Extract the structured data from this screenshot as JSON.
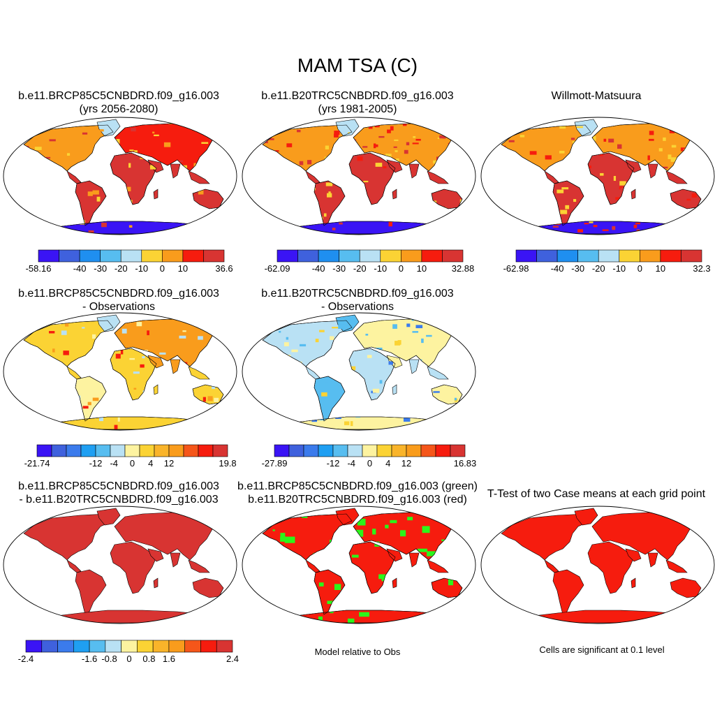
{
  "main_title": "MAM TSA (C)",
  "panels": [
    {
      "id": "p1",
      "line1": "b.e11.BRCP85C5CNBDRD.f09_g16.003",
      "line2": "(yrs 2056-2080)",
      "style": "abs_future"
    },
    {
      "id": "p2",
      "line1": "b.e11.B20TRC5CNBDRD.f09_g16.003",
      "line2": "(yrs 1981-2005)",
      "style": "abs_hist"
    },
    {
      "id": "p3",
      "line1": "",
      "line2": "Willmott-Matsuura",
      "style": "abs_obs"
    },
    {
      "id": "p4",
      "line1": "b.e11.BRCP85C5CNBDRD.f09_g16.003",
      "line2": "- Observations",
      "style": "diff_future"
    },
    {
      "id": "p5",
      "line1": "b.e11.B20TRC5CNBDRD.f09_g16.003",
      "line2": "- Observations",
      "style": "diff_hist"
    },
    {
      "id": "p7",
      "line1": "b.e11.BRCP85C5CNBDRD.f09_g16.003",
      "line2": "- b.e11.B20TRC5CNBDRD.f09_g16.003",
      "style": "diff_cases"
    },
    {
      "id": "p8",
      "line1": "b.e11.BRCP85C5CNBDRD.f09_g16.003 (green)",
      "line2": "b.e11.B20TRC5CNBDRD.f09_g16.003 (red)",
      "style": "closeness"
    },
    {
      "id": "p9",
      "line1": "T-Test of two Case means at each grid point",
      "line2": "",
      "style": "ttest"
    }
  ],
  "colorbars": [
    {
      "id": "cb1",
      "labels": [
        "-58.16",
        "-40",
        "-30",
        "-20",
        "-10",
        "0",
        "10",
        "36.6"
      ],
      "colors": [
        "#3a14f5",
        "#3f61dd",
        "#1f8ff0",
        "#57bdf0",
        "#b9e1f4",
        "#fbd334",
        "#f99c1c",
        "#f61c0e",
        "#d83432"
      ]
    },
    {
      "id": "cb2",
      "labels": [
        "-62.09",
        "-40",
        "-30",
        "-20",
        "-10",
        "0",
        "10",
        "32.88"
      ],
      "colors": [
        "#3a14f5",
        "#3f61dd",
        "#1f8ff0",
        "#57bdf0",
        "#b9e1f4",
        "#fbd334",
        "#f99c1c",
        "#f61c0e",
        "#d83432"
      ]
    },
    {
      "id": "cb3",
      "labels": [
        "-62.98",
        "-40",
        "-30",
        "-20",
        "-10",
        "0",
        "10",
        "32.3"
      ],
      "colors": [
        "#3a14f5",
        "#3f61dd",
        "#1f8ff0",
        "#57bdf0",
        "#b9e1f4",
        "#fbd334",
        "#f99c1c",
        "#f61c0e",
        "#d83432"
      ]
    },
    {
      "id": "cb4",
      "labels": [
        "-21.74",
        "-12",
        "-4",
        "0",
        "4",
        "12",
        "19.8"
      ],
      "colors": [
        "#3a14f5",
        "#3f61dd",
        "#3b7bec",
        "#1f9ff2",
        "#57bdf0",
        "#b9e1f4",
        "#fdf3a0",
        "#fbd334",
        "#f9b42a",
        "#f99c1c",
        "#f5561a",
        "#f61c0e",
        "#d83432"
      ]
    },
    {
      "id": "cb5",
      "labels": [
        "-27.89",
        "-12",
        "-4",
        "0",
        "4",
        "12",
        "16.83"
      ],
      "colors": [
        "#3a14f5",
        "#3f61dd",
        "#3b7bec",
        "#1f9ff2",
        "#57bdf0",
        "#b9e1f4",
        "#fdf3a0",
        "#fbd334",
        "#f9b42a",
        "#f99c1c",
        "#f5561a",
        "#f61c0e",
        "#d83432"
      ]
    },
    {
      "id": "cb7",
      "labels": [
        "-2.4",
        "-1.6",
        "-0.8",
        "0",
        "0.8",
        "1.6",
        "2.4"
      ],
      "colors": [
        "#3a14f5",
        "#3f61dd",
        "#3b7bec",
        "#1f9ff2",
        "#57bdf0",
        "#b9e1f4",
        "#fdf3a0",
        "#fbd334",
        "#f9b42a",
        "#f99c1c",
        "#f5561a",
        "#f61c0e",
        "#d83432"
      ]
    }
  ],
  "notes": {
    "closeness": "Model relative to Obs",
    "ttest": "Cells are significant at 0.1 level"
  },
  "colors": {
    "land_hot": "#d83432",
    "land_bright_red": "#f61c0e",
    "land_orange": "#f99c1c",
    "land_yellow": "#fbd334",
    "land_light_blue": "#b9e1f4",
    "antarctica_blue": "#3a14f5",
    "closeness_green": "#2cf51a",
    "outline": "#000000"
  }
}
